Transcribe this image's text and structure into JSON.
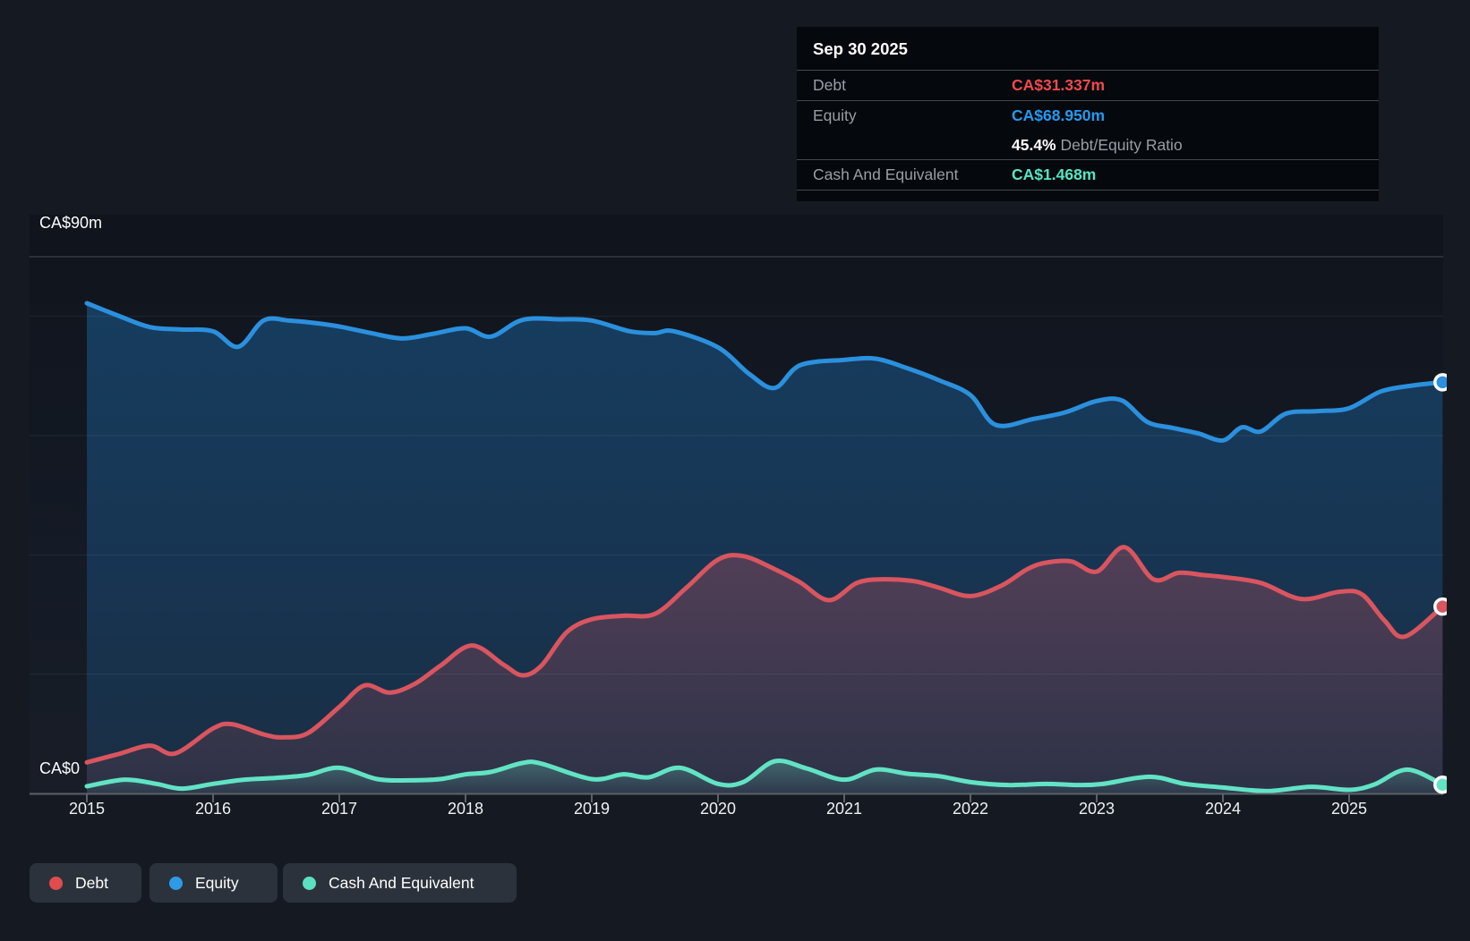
{
  "tooltip": {
    "date": "Sep 30 2025",
    "debt_label": "Debt",
    "debt_value": "CA$31.337m",
    "equity_label": "Equity",
    "equity_value": "CA$68.950m",
    "ratio_value": "45.4%",
    "ratio_label": "Debt/Equity Ratio",
    "cash_label": "Cash And Equivalent",
    "cash_value": "CA$1.468m"
  },
  "colors": {
    "debt_line": "#d9555f",
    "equity_line": "#2b90dd",
    "cash_line": "#62e3c5",
    "debt_text": "#ef4a4e",
    "equity_text": "#2499f0",
    "cash_text": "#55e6c4",
    "debt_dot": "#e14b50",
    "equity_dot": "#2e9be8",
    "cash_dot": "#5ce0c2",
    "axis_line": "#5c6168",
    "grid_faint": "rgba(255,255,255,0.07)",
    "grid_top": "rgba(255,255,255,0.24)",
    "page_bg": "#151a22"
  },
  "legend": {
    "items": [
      {
        "id": "debt",
        "label": "Debt"
      },
      {
        "id": "equity",
        "label": "Equity"
      },
      {
        "id": "cash",
        "label": "Cash And Equivalent"
      }
    ]
  },
  "y_axis": {
    "top_label": "CA$90m",
    "zero_label": "CA$0"
  },
  "chart_data": {
    "type": "area",
    "title": "Debt vs Equity vs Cash history",
    "ylim": [
      0,
      90
    ],
    "xlim": [
      2015,
      2025.78
    ],
    "grid_values": [
      20,
      40,
      60,
      80
    ],
    "top_value": 90,
    "legend_position": "bottom-left",
    "x_ticks": [
      {
        "t": 2015,
        "label": "2015"
      },
      {
        "t": 2016,
        "label": "2016"
      },
      {
        "t": 2017,
        "label": "2017"
      },
      {
        "t": 2018,
        "label": "2018"
      },
      {
        "t": 2019,
        "label": "2019"
      },
      {
        "t": 2020,
        "label": "2020"
      },
      {
        "t": 2021,
        "label": "2021"
      },
      {
        "t": 2022,
        "label": "2022"
      },
      {
        "t": 2023,
        "label": "2023"
      },
      {
        "t": 2024,
        "label": "2024"
      },
      {
        "t": 2025,
        "label": "2025"
      }
    ],
    "series": [
      {
        "name": "Equity",
        "unit": "CA$m",
        "last_value": 68.95,
        "points": [
          [
            2015.0,
            82.2
          ],
          [
            2015.25,
            80.1
          ],
          [
            2015.5,
            78.2
          ],
          [
            2015.75,
            77.8
          ],
          [
            2016.0,
            77.5
          ],
          [
            2016.2,
            74.9
          ],
          [
            2016.4,
            79.3
          ],
          [
            2016.6,
            79.3
          ],
          [
            2016.8,
            78.9
          ],
          [
            2017.0,
            78.3
          ],
          [
            2017.25,
            77.2
          ],
          [
            2017.5,
            76.3
          ],
          [
            2017.75,
            77.1
          ],
          [
            2018.0,
            78.0
          ],
          [
            2018.2,
            76.6
          ],
          [
            2018.45,
            79.4
          ],
          [
            2018.75,
            79.5
          ],
          [
            2019.0,
            79.3
          ],
          [
            2019.3,
            77.5
          ],
          [
            2019.5,
            77.2
          ],
          [
            2019.65,
            77.5
          ],
          [
            2020.0,
            74.8
          ],
          [
            2020.25,
            70.3
          ],
          [
            2020.45,
            68.0
          ],
          [
            2020.65,
            71.8
          ],
          [
            2021.0,
            72.7
          ],
          [
            2021.25,
            72.9
          ],
          [
            2021.5,
            71.3
          ],
          [
            2021.75,
            69.3
          ],
          [
            2022.0,
            66.8
          ],
          [
            2022.2,
            61.8
          ],
          [
            2022.5,
            62.8
          ],
          [
            2022.75,
            63.9
          ],
          [
            2023.0,
            65.8
          ],
          [
            2023.2,
            65.9
          ],
          [
            2023.4,
            62.3
          ],
          [
            2023.6,
            61.3
          ],
          [
            2023.8,
            60.4
          ],
          [
            2024.0,
            59.2
          ],
          [
            2024.15,
            61.4
          ],
          [
            2024.3,
            60.7
          ],
          [
            2024.5,
            63.7
          ],
          [
            2024.75,
            64.1
          ],
          [
            2025.0,
            64.6
          ],
          [
            2025.25,
            67.4
          ],
          [
            2025.5,
            68.4
          ],
          [
            2025.74,
            68.95
          ]
        ]
      },
      {
        "name": "Debt",
        "unit": "CA$m",
        "last_value": 31.337,
        "points": [
          [
            2015.0,
            5.2
          ],
          [
            2015.25,
            6.6
          ],
          [
            2015.5,
            8.0
          ],
          [
            2015.7,
            6.7
          ],
          [
            2016.0,
            10.9
          ],
          [
            2016.15,
            11.6
          ],
          [
            2016.4,
            9.9
          ],
          [
            2016.55,
            9.4
          ],
          [
            2016.75,
            10.1
          ],
          [
            2017.0,
            14.5
          ],
          [
            2017.2,
            18.1
          ],
          [
            2017.4,
            16.9
          ],
          [
            2017.6,
            18.4
          ],
          [
            2017.8,
            21.4
          ],
          [
            2018.05,
            24.8
          ],
          [
            2018.3,
            21.6
          ],
          [
            2018.45,
            19.8
          ],
          [
            2018.6,
            21.4
          ],
          [
            2018.8,
            27.0
          ],
          [
            2019.0,
            29.2
          ],
          [
            2019.25,
            29.8
          ],
          [
            2019.5,
            30.1
          ],
          [
            2019.75,
            34.5
          ],
          [
            2020.0,
            39.2
          ],
          [
            2020.2,
            39.8
          ],
          [
            2020.45,
            37.6
          ],
          [
            2020.65,
            35.4
          ],
          [
            2020.88,
            32.4
          ],
          [
            2021.1,
            35.3
          ],
          [
            2021.3,
            35.9
          ],
          [
            2021.55,
            35.6
          ],
          [
            2021.75,
            34.5
          ],
          [
            2022.0,
            33.1
          ],
          [
            2022.25,
            34.9
          ],
          [
            2022.45,
            37.6
          ],
          [
            2022.6,
            38.7
          ],
          [
            2022.8,
            38.9
          ],
          [
            2023.0,
            37.2
          ],
          [
            2023.22,
            41.3
          ],
          [
            2023.45,
            35.9
          ],
          [
            2023.65,
            37.0
          ],
          [
            2023.85,
            36.6
          ],
          [
            2024.0,
            36.3
          ],
          [
            2024.3,
            35.3
          ],
          [
            2024.62,
            32.6
          ],
          [
            2024.92,
            33.8
          ],
          [
            2025.1,
            33.4
          ],
          [
            2025.28,
            29.0
          ],
          [
            2025.44,
            26.3
          ],
          [
            2025.74,
            31.337
          ]
        ]
      },
      {
        "name": "Cash And Equivalent",
        "unit": "CA$m",
        "last_value": 1.468,
        "points": [
          [
            2015.0,
            1.2
          ],
          [
            2015.3,
            2.3
          ],
          [
            2015.55,
            1.6
          ],
          [
            2015.75,
            0.8
          ],
          [
            2016.0,
            1.6
          ],
          [
            2016.25,
            2.3
          ],
          [
            2016.5,
            2.6
          ],
          [
            2016.75,
            3.1
          ],
          [
            2017.0,
            4.3
          ],
          [
            2017.3,
            2.4
          ],
          [
            2017.55,
            2.2
          ],
          [
            2017.8,
            2.4
          ],
          [
            2018.0,
            3.2
          ],
          [
            2018.2,
            3.6
          ],
          [
            2018.45,
            5.1
          ],
          [
            2018.6,
            5.0
          ],
          [
            2019.0,
            2.4
          ],
          [
            2019.25,
            3.2
          ],
          [
            2019.45,
            2.7
          ],
          [
            2019.7,
            4.3
          ],
          [
            2020.0,
            1.6
          ],
          [
            2020.2,
            1.9
          ],
          [
            2020.45,
            5.4
          ],
          [
            2020.7,
            4.2
          ],
          [
            2021.0,
            2.3
          ],
          [
            2021.25,
            4.0
          ],
          [
            2021.5,
            3.3
          ],
          [
            2021.75,
            2.9
          ],
          [
            2022.0,
            1.9
          ],
          [
            2022.3,
            1.4
          ],
          [
            2022.6,
            1.6
          ],
          [
            2022.85,
            1.4
          ],
          [
            2023.05,
            1.6
          ],
          [
            2023.42,
            2.8
          ],
          [
            2023.7,
            1.6
          ],
          [
            2024.0,
            1.0
          ],
          [
            2024.35,
            0.4
          ],
          [
            2024.7,
            1.1
          ],
          [
            2025.0,
            0.6
          ],
          [
            2025.2,
            1.5
          ],
          [
            2025.46,
            4.0
          ],
          [
            2025.74,
            1.468
          ]
        ]
      }
    ]
  }
}
